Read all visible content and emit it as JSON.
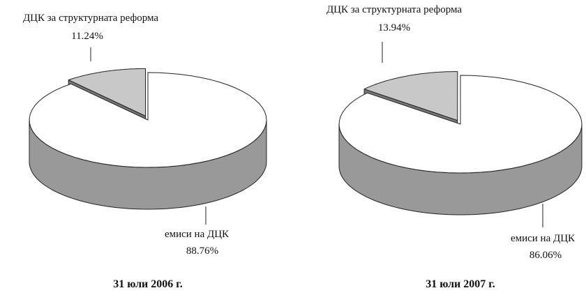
{
  "chart_data": [
    {
      "type": "pie",
      "title": "31 юли 2006 г.",
      "categories": [
        "ДЦК за структурната реформа",
        "емиси на ДЦК"
      ],
      "values": [
        11.24,
        88.76
      ],
      "value_labels": [
        "11.24%",
        "88.76%"
      ],
      "colors": [
        "#c8c8c8",
        "#ffffff"
      ]
    },
    {
      "type": "pie",
      "title": "31 юли 2007 г.",
      "categories": [
        "ДЦК за структурната реформа",
        "емиси на ДЦК"
      ],
      "values": [
        13.94,
        86.06
      ],
      "value_labels": [
        "13.94%",
        "86.06%"
      ],
      "colors": [
        "#c8c8c8",
        "#ffffff"
      ]
    }
  ]
}
